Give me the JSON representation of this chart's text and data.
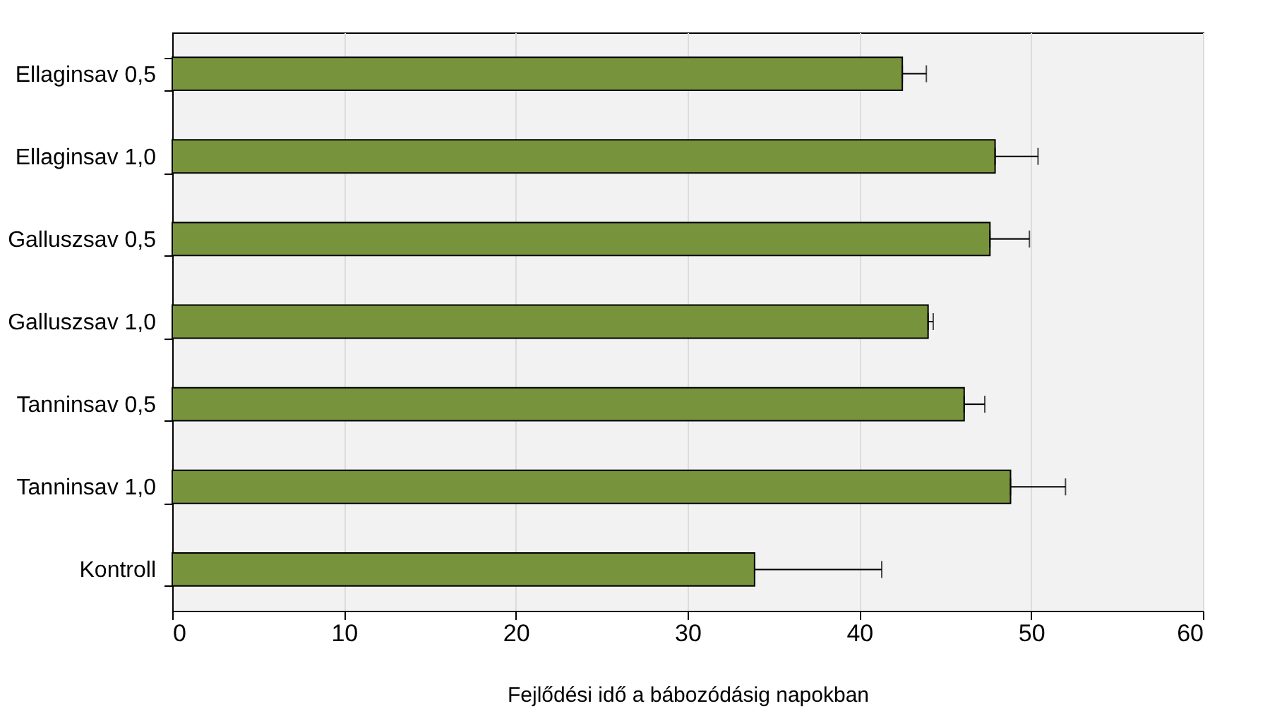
{
  "chart_data": {
    "type": "bar",
    "orientation": "horizontal",
    "xlabel": "Fejlődési idő a bábozódásig napokban",
    "categories": [
      "Ellaginsav 0,5",
      "Ellaginsav 1,0",
      "Galluszsav 0,5",
      "Galluszsav 1,0",
      "Tanninsav 0,5",
      "Tanninsav 1,0",
      "Kontroll"
    ],
    "values": [
      42.5,
      47.9,
      47.6,
      44.0,
      46.1,
      48.8,
      33.9
    ],
    "errors": [
      [
        42.5,
        43.9
      ],
      [
        47.9,
        50.4
      ],
      [
        47.6,
        49.9
      ],
      [
        44.0,
        44.3
      ],
      [
        46.1,
        47.3
      ],
      [
        48.8,
        52.0
      ],
      [
        33.9,
        41.3
      ]
    ],
    "color": "#77933c",
    "xlim": [
      0,
      60
    ],
    "xticks": [
      0,
      10,
      20,
      30,
      40,
      50,
      60
    ],
    "grid": "x"
  }
}
